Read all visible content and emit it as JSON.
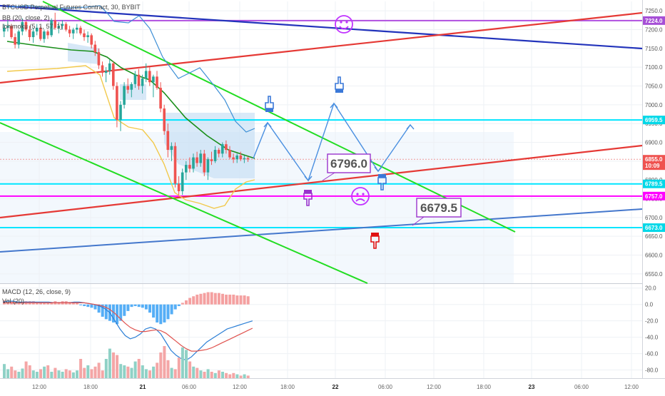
{
  "chart_data": {
    "type": "line",
    "title": "BTCUSD Perpetual Futures Contract, 30, BYBIT",
    "indicators": {
      "bb": "BB (20, close, 2)",
      "ichimoku": "Ichimoku (5, 1, 57, 1)",
      "macd": "MACD (12, 26, close, 9)",
      "volume": "Vol (20)"
    },
    "y_axis": {
      "range": [
        6525,
        7275
      ],
      "ticks": [
        "7250.0",
        "7200.0",
        "7150.0",
        "7100.0",
        "7050.0",
        "7000.0",
        "6950.0",
        "6900.0",
        "6850.0",
        "6800.0",
        "6750.0",
        "6700.0",
        "6650.0",
        "6600.0",
        "6550.0"
      ]
    },
    "macd_axis": {
      "range": [
        -90,
        25
      ],
      "ticks": [
        "20.0",
        "0.0",
        "-20.0",
        "-40.0",
        "-60.0",
        "-80.0"
      ]
    },
    "x_axis": {
      "ticks": [
        "12:00",
        "18:00",
        "21",
        "06:00",
        "12:00",
        "18:00",
        "22",
        "06:00",
        "12:00",
        "18:00",
        "23",
        "06:00",
        "12:00"
      ]
    },
    "price_badges": [
      {
        "text": "7224.0",
        "value": 7224,
        "color": "#a64fd6"
      },
      {
        "text": "6959.5",
        "value": 6959.5,
        "color": "#00d8e8"
      },
      {
        "text": "6855.0",
        "value": 6855,
        "color": "#ef5350"
      },
      {
        "text": "10:09",
        "value": 6838,
        "color": "#ef5350"
      },
      {
        "text": "6789.5",
        "value": 6789.5,
        "color": "#00d8e8"
      },
      {
        "text": "6757.0",
        "value": 6757,
        "color": "#ff00ff"
      },
      {
        "text": "6673.0",
        "value": 6673,
        "color": "#00d8e8"
      }
    ],
    "annotations": [
      {
        "text": "6796.0",
        "value": 6796
      },
      {
        "text": "6679.5",
        "value": 6679.5
      }
    ],
    "colors": {
      "up": "#26a69a",
      "down": "#ef5350",
      "hline_cyan": "#00e5ff",
      "hline_magenta": "#ff00ff",
      "hline_purple": "#b04fe0",
      "trend_red": "#e53935",
      "trend_green": "#22dd22",
      "trend_navy": "#2233bb",
      "trend_blue": "#4477cc",
      "bb_band": "#3d8fd6",
      "tenkan": "#1a8f1a",
      "ichi_span": "#f2c94c",
      "arrow": "#4a8fe0",
      "smiley": "#c133ff",
      "hand_blue": "#3a78d8",
      "hand_purple": "#9933cc",
      "hand_red": "#e01010"
    },
    "icons": {
      "smiley_happy": "happy-face-icon",
      "smiley_sad": "sad-face-icon",
      "hand": "pointing-hand-icon"
    },
    "candles": [
      [
        7195,
        7215,
        7180,
        7205
      ],
      [
        7205,
        7225,
        7195,
        7210
      ],
      [
        7210,
        7215,
        7175,
        7180
      ],
      [
        7180,
        7190,
        7150,
        7160
      ],
      [
        7160,
        7200,
        7150,
        7195
      ],
      [
        7195,
        7230,
        7185,
        7220
      ],
      [
        7220,
        7225,
        7195,
        7200
      ],
      [
        7200,
        7210,
        7170,
        7180
      ],
      [
        7180,
        7205,
        7165,
        7195
      ],
      [
        7195,
        7215,
        7185,
        7205
      ],
      [
        7205,
        7210,
        7170,
        7175
      ],
      [
        7175,
        7200,
        7165,
        7195
      ],
      [
        7195,
        7200,
        7175,
        7185
      ],
      [
        7185,
        7230,
        7180,
        7225
      ],
      [
        7225,
        7245,
        7200,
        7205
      ],
      [
        7205,
        7220,
        7190,
        7210
      ],
      [
        7210,
        7225,
        7200,
        7215
      ],
      [
        7215,
        7220,
        7195,
        7200
      ],
      [
        7200,
        7210,
        7180,
        7190
      ],
      [
        7190,
        7205,
        7175,
        7200
      ],
      [
        7200,
        7215,
        7190,
        7205
      ],
      [
        7205,
        7210,
        7185,
        7190
      ],
      [
        7190,
        7200,
        7170,
        7180
      ],
      [
        7180,
        7195,
        7165,
        7185
      ],
      [
        7185,
        7190,
        7150,
        7160
      ],
      [
        7160,
        7170,
        7130,
        7140
      ],
      [
        7140,
        7150,
        7095,
        7105
      ],
      [
        7105,
        7115,
        7075,
        7085
      ],
      [
        7085,
        7100,
        7060,
        7090
      ],
      [
        7090,
        7120,
        7080,
        7110
      ],
      [
        7110,
        7115,
        7040,
        7050
      ],
      [
        7050,
        7060,
        6940,
        6960
      ],
      [
        6960,
        7010,
        6930,
        7000
      ],
      [
        7000,
        7060,
        6990,
        7050
      ],
      [
        7050,
        7070,
        7030,
        7040
      ],
      [
        7040,
        7060,
        7020,
        7055
      ],
      [
        7055,
        7090,
        7045,
        7080
      ],
      [
        7080,
        7095,
        7040,
        7050
      ],
      [
        7050,
        7080,
        7030,
        7070
      ],
      [
        7070,
        7110,
        7060,
        7090
      ],
      [
        7090,
        7100,
        7050,
        7060
      ],
      [
        7060,
        7080,
        7020,
        7075
      ],
      [
        7075,
        7090,
        7040,
        7045
      ],
      [
        7045,
        7060,
        6980,
        6990
      ],
      [
        6990,
        7000,
        6920,
        6930
      ],
      [
        6930,
        6950,
        6860,
        6880
      ],
      [
        6880,
        6900,
        6850,
        6890
      ],
      [
        6890,
        6900,
        6780,
        6790
      ],
      [
        6790,
        6810,
        6760,
        6770
      ],
      [
        6770,
        6830,
        6760,
        6820
      ],
      [
        6820,
        6850,
        6800,
        6840
      ],
      [
        6840,
        6860,
        6820,
        6830
      ],
      [
        6830,
        6870,
        6820,
        6860
      ],
      [
        6860,
        6875,
        6835,
        6845
      ],
      [
        6845,
        6880,
        6835,
        6870
      ],
      [
        6870,
        6880,
        6810,
        6820
      ],
      [
        6820,
        6860,
        6800,
        6855
      ],
      [
        6855,
        6875,
        6840,
        6850
      ],
      [
        6850,
        6890,
        6845,
        6880
      ],
      [
        6880,
        6885,
        6860,
        6870
      ],
      [
        6870,
        6900,
        6860,
        6895
      ],
      [
        6895,
        6905,
        6870,
        6880
      ],
      [
        6880,
        6890,
        6855,
        6860
      ],
      [
        6860,
        6870,
        6845,
        6855
      ],
      [
        6855,
        6870,
        6845,
        6865
      ],
      [
        6865,
        6875,
        6850,
        6855
      ],
      [
        6855,
        6865,
        6845,
        6858
      ],
      [
        6858,
        6862,
        6848,
        6855
      ]
    ],
    "macd_hist": [
      5,
      3,
      4,
      3,
      2,
      3,
      4,
      4,
      4,
      3,
      3,
      2,
      2,
      3,
      4,
      3,
      4,
      4,
      3,
      3,
      3,
      -1,
      -2,
      -3,
      -4,
      -6,
      -10,
      -15,
      -18,
      -20,
      -22,
      -24,
      -20,
      -14,
      -8,
      -3,
      -2,
      -3,
      -4,
      -6,
      -10,
      -16,
      -22,
      -24,
      -22,
      -18,
      -12,
      -6,
      -2,
      2,
      5,
      8,
      10,
      12,
      13,
      14,
      15,
      15,
      14,
      14,
      13,
      12,
      12,
      12,
      11,
      11,
      11,
      10
    ],
    "macd_line": [
      3,
      4,
      4,
      3,
      3,
      3,
      3,
      3,
      3,
      3,
      2,
      2,
      2,
      2,
      3,
      3,
      2,
      1,
      0,
      -2,
      -5,
      -10,
      -20,
      -30,
      -38,
      -42,
      -40,
      -36,
      -30,
      -28,
      -30,
      -36,
      -46,
      -56,
      -62,
      -66,
      -68,
      -64,
      -58,
      -52,
      -46,
      -42,
      -38,
      -34,
      -30,
      -28,
      -26,
      -24,
      -22,
      -20
    ],
    "signal_line": [
      2,
      2,
      2,
      2,
      2,
      2,
      2,
      2,
      2,
      2,
      2,
      2,
      2,
      2,
      2,
      2,
      2,
      1,
      0,
      -1,
      -3,
      -6,
      -11,
      -17,
      -23,
      -28,
      -31,
      -33,
      -33,
      -32,
      -31,
      -32,
      -35,
      -40,
      -45,
      -50,
      -54,
      -57,
      -57,
      -56,
      -55,
      -53,
      -50,
      -47,
      -44,
      -41,
      -38,
      -35,
      -32,
      -29
    ],
    "volume": [
      22,
      14,
      18,
      12,
      10,
      15,
      26,
      20,
      12,
      10,
      14,
      18,
      20,
      10,
      16,
      12,
      10,
      14,
      12,
      9,
      12,
      30,
      16,
      20,
      14,
      18,
      24,
      12,
      30,
      46,
      40,
      36,
      22,
      20,
      18,
      16,
      26,
      30,
      20,
      14,
      12,
      18,
      24,
      40,
      50,
      28,
      16,
      14,
      32,
      48,
      44,
      26,
      18,
      16,
      12,
      10,
      14,
      10,
      8,
      12,
      10,
      8,
      6,
      8,
      6,
      4,
      6,
      4
    ]
  }
}
